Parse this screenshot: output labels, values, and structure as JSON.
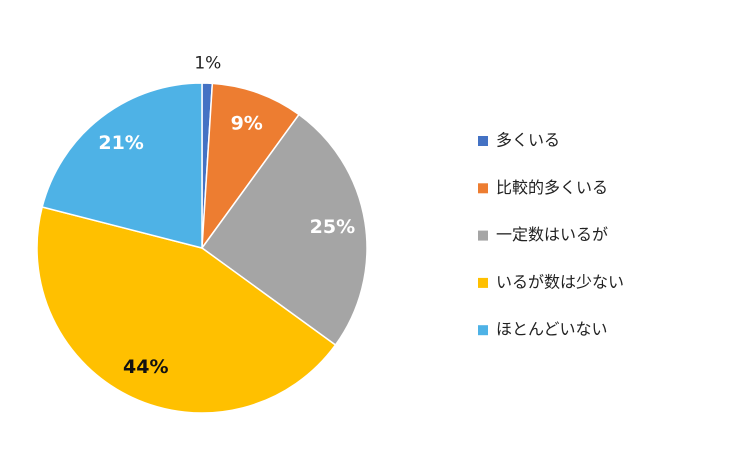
{
  "chart_data": {
    "type": "pie",
    "categories": [
      "多くいる",
      "比較的多くいる",
      "一定数はいるが",
      "いるが数は少ない",
      "ほとんどいない"
    ],
    "values": [
      1,
      9,
      25,
      44,
      21
    ],
    "value_labels": [
      "1%",
      "9%",
      "25%",
      "44%",
      "21%"
    ],
    "colors": [
      "#4472c4",
      "#ed7d31",
      "#a5a5a5",
      "#ffc000",
      "#4eb2e6"
    ],
    "label_colors": [
      "#222222",
      "#ffffff",
      "#ffffff",
      "#111111",
      "#ffffff"
    ],
    "legend": "right"
  }
}
